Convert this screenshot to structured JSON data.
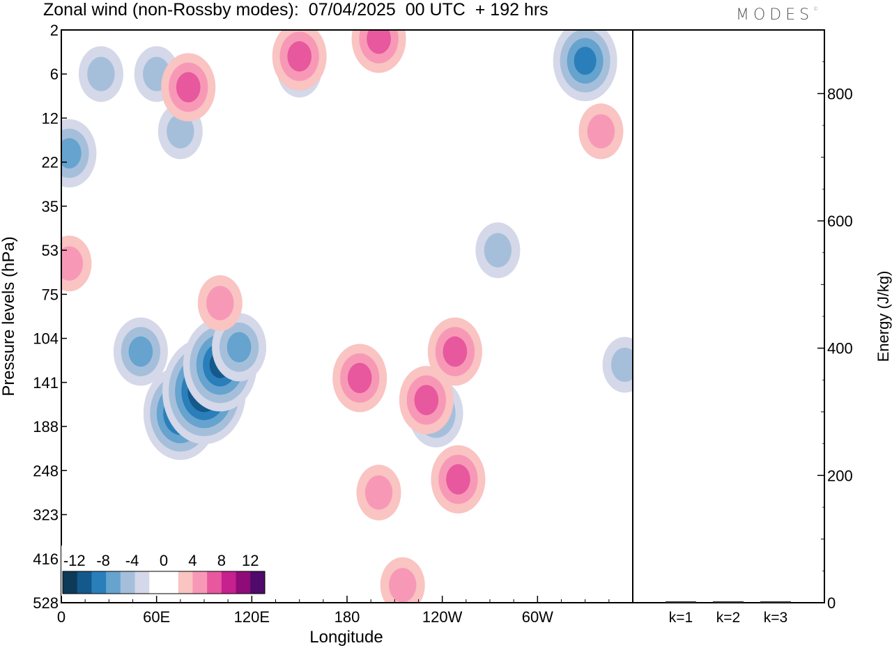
{
  "title": "Zonal wind (non-Rossby modes):  07/04/2025  00 UTC  + 192 hrs",
  "logo": "MODES",
  "chart_data": [
    {
      "type": "heatmap",
      "title": "Zonal wind (non-Rossby modes):  07/04/2025  00 UTC  + 192 hrs",
      "xlabel": "Longitude",
      "ylabel": "Pressure levels (hPa)",
      "x_ticks": [
        "0",
        "60E",
        "120E",
        "180",
        "120W",
        "60W"
      ],
      "y_ticks": [
        "2",
        "6",
        "12",
        "22",
        "35",
        "53",
        "75",
        "104",
        "141",
        "188",
        "248",
        "323",
        "416",
        "528"
      ],
      "colorbar": {
        "labels": [
          "-12",
          "-8",
          "-4",
          "0",
          "4",
          "8",
          "12"
        ],
        "colors": [
          "#0d3a57",
          "#14598c",
          "#2a7fba",
          "#66a3cf",
          "#a5bfdb",
          "#d4d8e8",
          "#ffffff",
          "#ffffff",
          "#f9c4c2",
          "#f799b6",
          "#e8589e",
          "#c7208f",
          "#8f0c78",
          "#4f0a6a"
        ]
      },
      "series": [
        {
          "name": "",
          "sign": "negative",
          "blobs": [
            {
              "lon": 75,
              "level_index": 8.7,
              "value": -10
            },
            {
              "lon": 90,
              "level_index": 8.2,
              "value": -12
            },
            {
              "lon": 100,
              "level_index": 7.6,
              "value": -9
            },
            {
              "lon": 50,
              "level_index": 7.3,
              "value": -6
            },
            {
              "lon": 5,
              "level_index": 2.8,
              "value": -5
            },
            {
              "lon": 330,
              "level_index": 0.7,
              "value": -7
            },
            {
              "lon": 112,
              "level_index": 7.2,
              "value": -5
            },
            {
              "lon": 236,
              "level_index": 8.7,
              "value": -5
            },
            {
              "lon": 60,
              "level_index": 1,
              "value": -3
            },
            {
              "lon": 25,
              "level_index": 1,
              "value": -3
            },
            {
              "lon": 355,
              "level_index": 7.6,
              "value": -4
            },
            {
              "lon": 275,
              "level_index": 5,
              "value": -3
            },
            {
              "lon": 150,
              "level_index": 0.9,
              "value": -3
            },
            {
              "lon": 75,
              "level_index": 2.3,
              "value": -3
            }
          ]
        },
        {
          "name": "",
          "sign": "positive",
          "blobs": [
            {
              "lon": 150,
              "level_index": 0.6,
              "value": 5
            },
            {
              "lon": 200,
              "level_index": 0.2,
              "value": 6
            },
            {
              "lon": 80,
              "level_index": 1.3,
              "value": 5
            },
            {
              "lon": 230,
              "level_index": 8.4,
              "value": 5
            },
            {
              "lon": 250,
              "level_index": 10.2,
              "value": 6
            },
            {
              "lon": 248,
              "level_index": 7.3,
              "value": 6
            },
            {
              "lon": 188,
              "level_index": 7.9,
              "value": 5
            },
            {
              "lon": 200,
              "level_index": 10.5,
              "value": 3
            },
            {
              "lon": 215,
              "level_index": 12.6,
              "value": 3
            },
            {
              "lon": 100,
              "level_index": 6.2,
              "value": 3
            },
            {
              "lon": 5,
              "level_index": 5.3,
              "value": 3
            },
            {
              "lon": 340,
              "level_index": 2.3,
              "value": 3
            }
          ]
        }
      ],
      "x_range": [
        0,
        360
      ],
      "grid": false
    },
    {
      "type": "bar",
      "categories": [
        "k=1",
        "k=2",
        "k=3"
      ],
      "values": [
        1.5,
        1.0,
        0.8
      ],
      "ylabel": "Energy (J/kg)",
      "y_ticks": [
        "0",
        "200",
        "400",
        "600",
        "800"
      ],
      "ylim": [
        0,
        900
      ]
    }
  ]
}
